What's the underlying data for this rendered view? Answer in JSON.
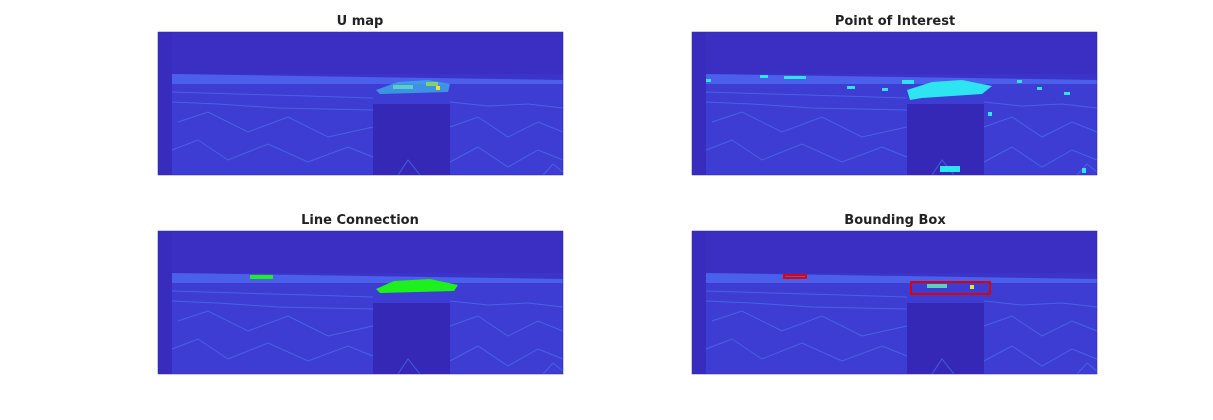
{
  "panels": [
    {
      "title": "U map"
    },
    {
      "title": "Point of Interest"
    },
    {
      "title": "Line Connection"
    },
    {
      "title": "Bounding Box"
    }
  ]
}
